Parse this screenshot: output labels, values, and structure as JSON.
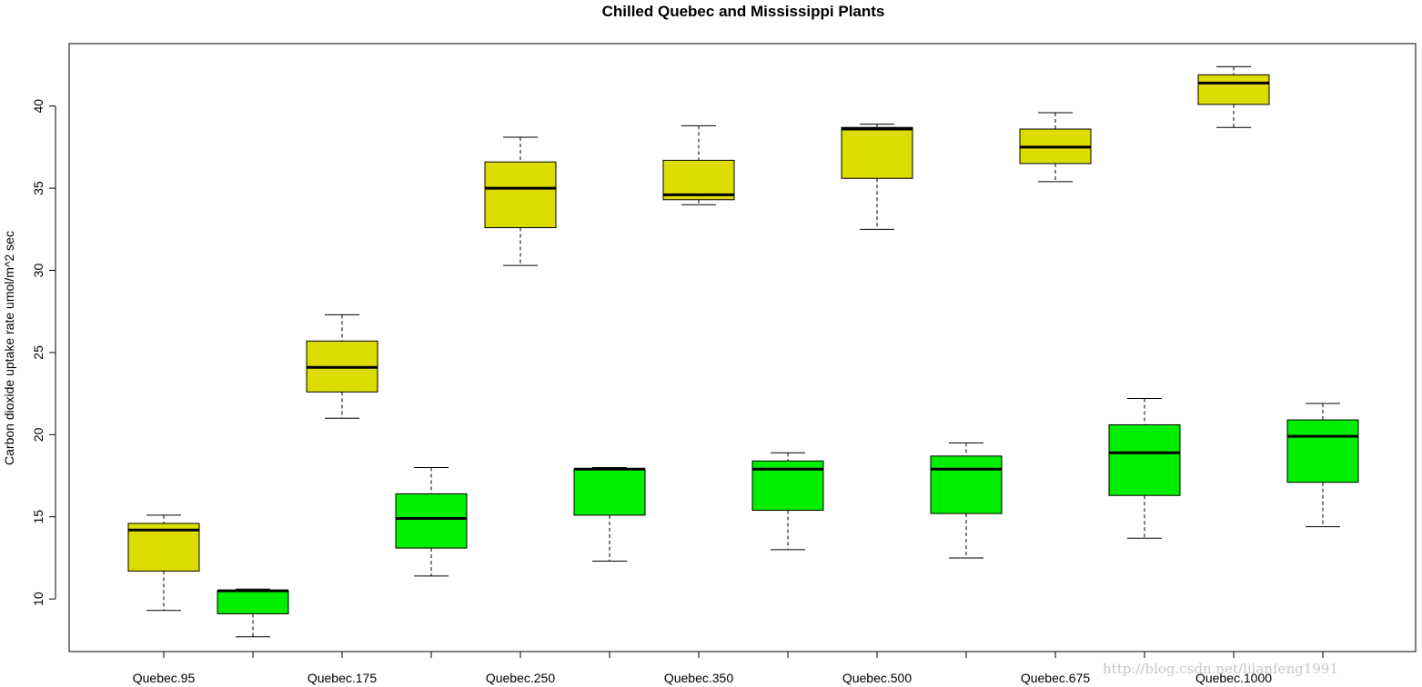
{
  "chart_data": {
    "type": "boxplot",
    "title": "Chilled Quebec and Mississippi Plants",
    "ylabel": "Carbon dioxide uptake rate umol/m^2 sec",
    "xlabel": "",
    "ylim": [
      6.8,
      43.8
    ],
    "yticks": [
      10,
      15,
      20,
      25,
      30,
      35,
      40
    ],
    "xtick_labels": [
      "Quebec.95",
      "Quebec.175",
      "Quebec.250",
      "Quebec.350",
      "Quebec.500",
      "Quebec.675",
      "Quebec.1000"
    ],
    "colors": {
      "quebec": "#dcdc00",
      "mississippi": "#00ee00"
    },
    "boxes": [
      {
        "group": "Quebec.95",
        "series": "quebec",
        "min": 9.3,
        "q1": 11.7,
        "median": 14.2,
        "q3": 14.6,
        "max": 15.1
      },
      {
        "group": "Quebec.95",
        "series": "mississippi",
        "min": 7.7,
        "q1": 9.1,
        "median": 10.5,
        "q3": 10.5,
        "max": 10.6
      },
      {
        "group": "Quebec.175",
        "series": "quebec",
        "min": 21.0,
        "q1": 22.6,
        "median": 24.1,
        "q3": 25.7,
        "max": 27.3
      },
      {
        "group": "Quebec.175",
        "series": "mississippi",
        "min": 11.4,
        "q1": 13.1,
        "median": 14.9,
        "q3": 16.4,
        "max": 18.0
      },
      {
        "group": "Quebec.250",
        "series": "quebec",
        "min": 30.3,
        "q1": 32.6,
        "median": 35.0,
        "q3": 36.6,
        "max": 38.1
      },
      {
        "group": "Quebec.250",
        "series": "mississippi",
        "min": 12.3,
        "q1": 15.1,
        "median": 17.9,
        "q3": 17.9,
        "max": 18.0
      },
      {
        "group": "Quebec.350",
        "series": "quebec",
        "min": 34.0,
        "q1": 34.3,
        "median": 34.6,
        "q3": 36.7,
        "max": 38.8
      },
      {
        "group": "Quebec.350",
        "series": "mississippi",
        "min": 13.0,
        "q1": 15.4,
        "median": 17.9,
        "q3": 18.4,
        "max": 18.9
      },
      {
        "group": "Quebec.500",
        "series": "quebec",
        "min": 32.5,
        "q1": 35.6,
        "median": 38.6,
        "q3": 38.7,
        "max": 38.9
      },
      {
        "group": "Quebec.500",
        "series": "mississippi",
        "min": 12.5,
        "q1": 15.2,
        "median": 17.9,
        "q3": 18.7,
        "max": 19.5
      },
      {
        "group": "Quebec.675",
        "series": "quebec",
        "min": 35.4,
        "q1": 36.5,
        "median": 37.5,
        "q3": 38.6,
        "max": 39.6
      },
      {
        "group": "Quebec.675",
        "series": "mississippi",
        "min": 13.7,
        "q1": 16.3,
        "median": 18.9,
        "q3": 20.6,
        "max": 22.2
      },
      {
        "group": "Quebec.1000",
        "series": "quebec",
        "min": 38.7,
        "q1": 40.1,
        "median": 41.4,
        "q3": 41.9,
        "max": 42.4
      },
      {
        "group": "Quebec.1000",
        "series": "mississippi",
        "min": 14.4,
        "q1": 17.1,
        "median": 19.9,
        "q3": 20.9,
        "max": 21.9
      }
    ]
  },
  "watermark_text": "http://blog.csdn.net/lilanfeng1991"
}
